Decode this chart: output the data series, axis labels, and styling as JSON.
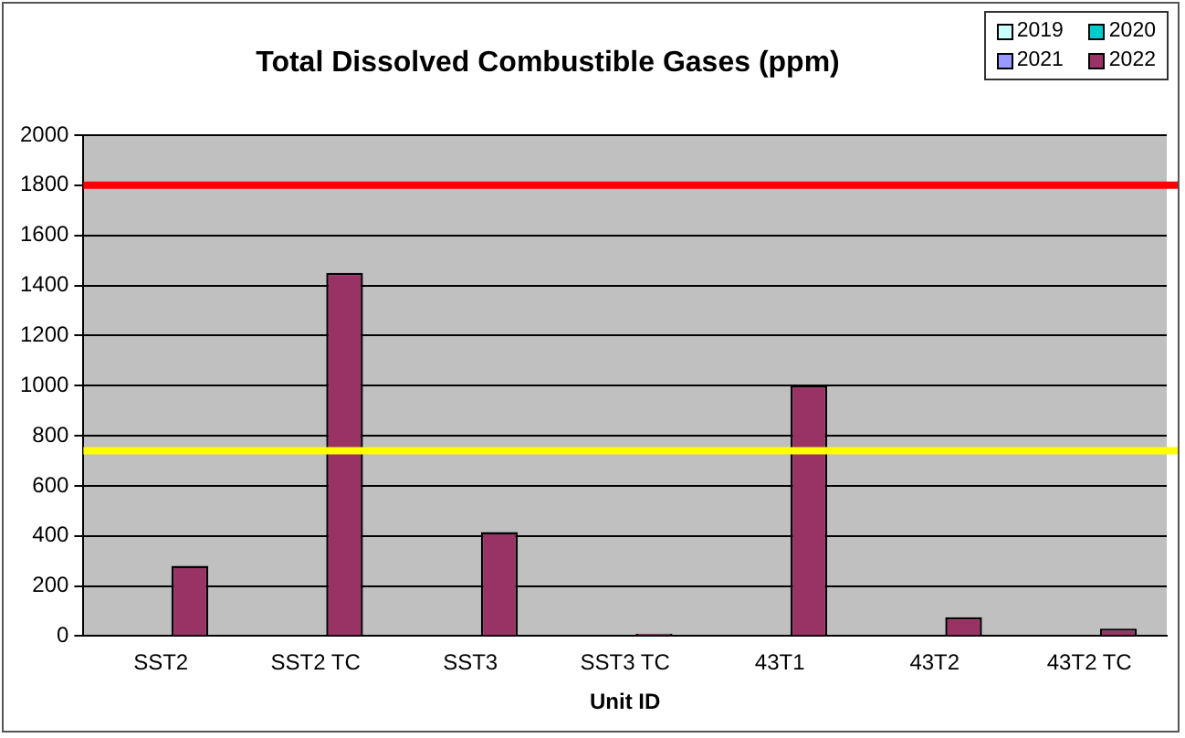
{
  "chart_data": {
    "type": "bar",
    "title": "Total Dissolved Combustible Gases (ppm)",
    "xlabel": "Unit ID",
    "categories": [
      "SST2",
      "SST2 TC",
      "SST3",
      "SST3 TC",
      "43T1",
      "43T2",
      "43T2 TC"
    ],
    "series": [
      {
        "name": "2019",
        "color": "#ccffff",
        "values": [
          null,
          null,
          null,
          null,
          null,
          null,
          null
        ]
      },
      {
        "name": "2020",
        "color": "#00cccc",
        "values": [
          null,
          null,
          null,
          null,
          null,
          null,
          null
        ]
      },
      {
        "name": "2021",
        "color": "#9999ff",
        "values": [
          null,
          null,
          null,
          null,
          null,
          null,
          null
        ]
      },
      {
        "name": "2022",
        "color": "#993366",
        "values": [
          280,
          1450,
          415,
          10,
          1000,
          75,
          30
        ]
      }
    ],
    "ylim": [
      0,
      2000
    ],
    "yticks": [
      0,
      200,
      400,
      600,
      800,
      1000,
      1200,
      1400,
      1600,
      1800,
      2000
    ],
    "ref_lines": [
      {
        "axis": "y",
        "value": 1800,
        "color": "#ff0000"
      },
      {
        "axis": "y",
        "value": 740,
        "color": "#ffff00"
      }
    ],
    "grid": "y",
    "legend": "top right"
  }
}
